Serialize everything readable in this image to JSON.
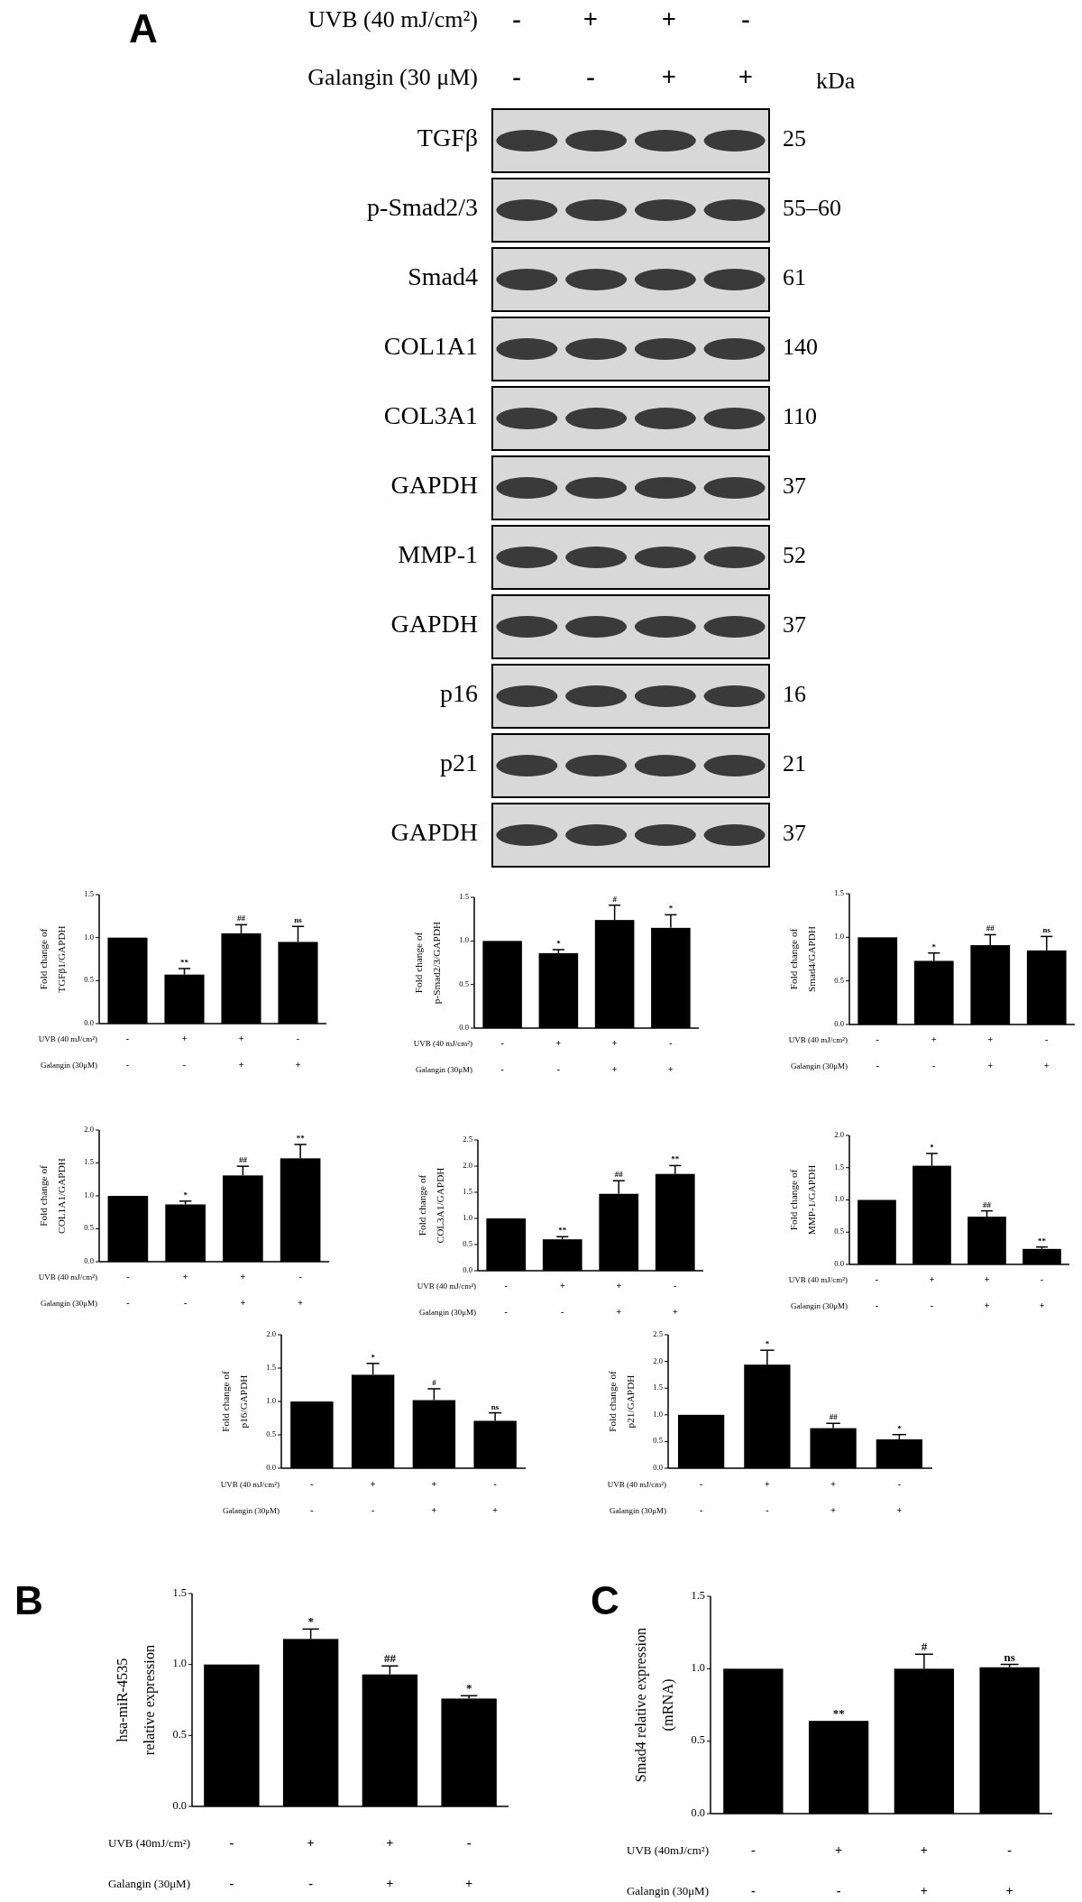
{
  "chart_data": [
    {
      "type": "other",
      "title": "A",
      "annotations": [
        "UVB (40 mJ/cm²)",
        "-",
        "+",
        "+",
        "-",
        "Galangin (30 μM)",
        "-",
        "-",
        "+",
        "+",
        "kDa",
        "TGFβ",
        "25",
        "p-Smad2/3",
        "55–60",
        "Smad4",
        "61",
        "COL1A1",
        "140",
        "COL3A1",
        "110",
        "GAPDH",
        "37",
        "MMP-1",
        "52",
        "GAPDH",
        "37",
        "p16",
        "16",
        "p21",
        "21",
        "GAPDH",
        "37"
      ]
    },
    {
      "type": "bar",
      "ylabel": "Fold change of\nTGFβ1/GAPDH",
      "categories": [
        null,
        null,
        null,
        null
      ],
      "color": "#000000",
      "values": [
        1,
        0.57,
        1.05,
        0.95
      ],
      "errors": [
        null,
        0.07,
        0.1,
        0.18
      ],
      "value_labels": [
        null,
        "**",
        "##",
        "ns"
      ],
      "ylim": [
        0,
        1.5
      ],
      "yticks": [
        {
          "value": 0,
          "label": "0.0"
        },
        {
          "value": 0.5,
          "label": "0.5"
        },
        {
          "value": 1,
          "label": "1.0"
        },
        {
          "value": 1.5,
          "label": "1.5"
        }
      ],
      "annotations": [
        "UVB (40 mJ/cm²)",
        "-",
        "+",
        "+",
        "-",
        "Galangin (30μM)",
        "-",
        "-",
        "+",
        "+"
      ]
    },
    {
      "type": "bar",
      "ylabel": "Fold change of\np-Smad2/3/GAPDH",
      "categories": [
        null,
        null,
        null,
        null
      ],
      "color": "#000000",
      "values": [
        1,
        0.86,
        1.24,
        1.15
      ],
      "errors": [
        null,
        0.04,
        0.17,
        0.15
      ],
      "value_labels": [
        null,
        "*",
        "#",
        "*"
      ],
      "ylim": [
        0,
        1.5
      ],
      "yticks": [
        {
          "value": 0,
          "label": "0.0"
        },
        {
          "value": 0.5,
          "label": "0.5"
        },
        {
          "value": 1,
          "label": "1.0"
        },
        {
          "value": 1.5,
          "label": "1.5"
        }
      ],
      "annotations": [
        "UVB (40 mJ/cm²)",
        "-",
        "+",
        "+",
        "-",
        "Galangin (30μM)",
        "-",
        "-",
        "+",
        "+"
      ]
    },
    {
      "type": "bar",
      "ylabel": "Fold change of\nSmad4/GAPDH",
      "categories": [
        null,
        null,
        null,
        null
      ],
      "color": "#000000",
      "values": [
        1,
        0.73,
        0.91,
        0.85
      ],
      "errors": [
        null,
        0.09,
        0.12,
        0.16
      ],
      "value_labels": [
        null,
        "*",
        "##",
        "ns"
      ],
      "ylim": [
        0,
        1.5
      ],
      "yticks": [
        {
          "value": 0,
          "label": "0.0"
        },
        {
          "value": 0.5,
          "label": "0.5"
        },
        {
          "value": 1,
          "label": "1.0"
        },
        {
          "value": 1.5,
          "label": "1.5"
        }
      ],
      "annotations": [
        "UVB (40 mJ/cm²)",
        "-",
        "+",
        "+",
        "-",
        "Galangin (30μM)",
        "-",
        "-",
        "+",
        "+"
      ]
    },
    {
      "type": "bar",
      "ylabel": "Fold change of\nCOL1A1/GAPDH",
      "categories": [
        null,
        null,
        null,
        null
      ],
      "color": "#000000",
      "values": [
        1,
        0.87,
        1.31,
        1.57
      ],
      "errors": [
        null,
        0.05,
        0.14,
        0.21
      ],
      "value_labels": [
        null,
        "*",
        "##",
        "**"
      ],
      "ylim": [
        0,
        2
      ],
      "yticks": [
        {
          "value": 0,
          "label": "0.0"
        },
        {
          "value": 0.5,
          "label": "0.5"
        },
        {
          "value": 1,
          "label": "1.0"
        },
        {
          "value": 1.5,
          "label": "1.5"
        },
        {
          "value": 2,
          "label": "2.0"
        }
      ],
      "annotations": [
        "UVB (40 mJ/cm²)",
        "-",
        "+",
        "+",
        "-",
        "Galangin (30μM)",
        "-",
        "-",
        "+",
        "+"
      ]
    },
    {
      "type": "bar",
      "ylabel": "Fold change of\nCOL3A1/GAPDH",
      "categories": [
        null,
        null,
        null,
        null
      ],
      "color": "#000000",
      "values": [
        1,
        0.6,
        1.47,
        1.85
      ],
      "errors": [
        null,
        0.05,
        0.25,
        0.16
      ],
      "value_labels": [
        null,
        "**",
        "##",
        "**"
      ],
      "ylim": [
        0,
        2.5
      ],
      "yticks": [
        {
          "value": 0,
          "label": "0.0"
        },
        {
          "value": 0.5,
          "label": "0.5"
        },
        {
          "value": 1,
          "label": "1.0"
        },
        {
          "value": 1.5,
          "label": "1.5"
        },
        {
          "value": 2,
          "label": "2.0"
        },
        {
          "value": 2.5,
          "label": "2.5"
        }
      ],
      "annotations": [
        "UVB (40 mJ/cm²)",
        "-",
        "+",
        "+",
        "-",
        "Galangin (30μM)",
        "-",
        "-",
        "+",
        "+"
      ]
    },
    {
      "type": "bar",
      "ylabel": "Fold change of\nMMP-1/GAPDH",
      "categories": [
        null,
        null,
        null,
        null
      ],
      "color": "#000000",
      "values": [
        1,
        1.53,
        0.74,
        0.24
      ],
      "errors": [
        null,
        0.19,
        0.09,
        0.03
      ],
      "value_labels": [
        null,
        "*",
        "##",
        "**"
      ],
      "ylim": [
        0,
        2
      ],
      "yticks": [
        {
          "value": 0,
          "label": "0.0"
        },
        {
          "value": 0.5,
          "label": "0.5"
        },
        {
          "value": 1,
          "label": "1.0"
        },
        {
          "value": 1.5,
          "label": "1.5"
        },
        {
          "value": 2,
          "label": "2.0"
        }
      ],
      "annotations": [
        "UVB (40 mJ/cm²)",
        "-",
        "+",
        "+",
        "-",
        "Galangin (30μM)",
        "-",
        "-",
        "+",
        "+"
      ]
    },
    {
      "type": "bar",
      "ylabel": "Fold change of\np16/GAPDH",
      "categories": [
        null,
        null,
        null,
        null
      ],
      "color": "#000000",
      "values": [
        1,
        1.4,
        1.02,
        0.71
      ],
      "errors": [
        null,
        0.17,
        0.17,
        0.12
      ],
      "value_labels": [
        null,
        "*",
        "#",
        "ns"
      ],
      "ylim": [
        0,
        2
      ],
      "yticks": [
        {
          "value": 0,
          "label": "0.0"
        },
        {
          "value": 0.5,
          "label": "0.5"
        },
        {
          "value": 1,
          "label": "1.0"
        },
        {
          "value": 1.5,
          "label": "1.5"
        },
        {
          "value": 2,
          "label": "2.0"
        }
      ],
      "annotations": [
        "UVB (40 mJ/cm²)",
        "-",
        "+",
        "+",
        "-",
        "Galangin (30μM)",
        "-",
        "-",
        "+",
        "+"
      ]
    },
    {
      "type": "bar",
      "ylabel": "Fold change of\np21/GAPDH",
      "categories": [
        null,
        null,
        null,
        null
      ],
      "color": "#000000",
      "values": [
        1,
        1.94,
        0.75,
        0.54
      ],
      "errors": [
        null,
        0.27,
        0.09,
        0.09
      ],
      "value_labels": [
        null,
        "*",
        "##",
        "*"
      ],
      "ylim": [
        0,
        2.5
      ],
      "yticks": [
        {
          "value": 0,
          "label": "0.0"
        },
        {
          "value": 0.5,
          "label": "0.5"
        },
        {
          "value": 1,
          "label": "1.0"
        },
        {
          "value": 1.5,
          "label": "1.5"
        },
        {
          "value": 2,
          "label": "2.0"
        },
        {
          "value": 2.5,
          "label": "2.5"
        }
      ],
      "annotations": [
        "UVB (40 mJ/cm²)",
        "-",
        "+",
        "+",
        "-",
        "Galangin (30μM)",
        "-",
        "-",
        "+",
        "+"
      ]
    },
    {
      "type": "bar",
      "title": "B",
      "ylabel": "hsa-miR-4535\nrelative expression",
      "categories": [
        null,
        null,
        null,
        null
      ],
      "color": "#000000",
      "values": [
        1,
        1.18,
        0.93,
        0.76
      ],
      "errors": [
        null,
        0.07,
        0.06,
        0.02
      ],
      "value_labels": [
        null,
        "*",
        "##",
        "*"
      ],
      "ylim": [
        0,
        1.5
      ],
      "yticks": [
        {
          "value": 0,
          "label": "0.0"
        },
        {
          "value": 0.5,
          "label": "0.5"
        },
        {
          "value": 1,
          "label": "1.0"
        },
        {
          "value": 1.5,
          "label": "1.5"
        }
      ],
      "annotations": [
        "UVB (40mJ/cm²)",
        "-",
        "+",
        "+",
        "-",
        "Galangin  (30μM)",
        "-",
        "-",
        "+",
        "+"
      ]
    },
    {
      "type": "bar",
      "title": "C",
      "ylabel": "Smad4 relative expression\n(mRNA)",
      "categories": [
        null,
        null,
        null,
        null
      ],
      "color": "#000000",
      "values": [
        1,
        0.64,
        1.0,
        1.01
      ],
      "errors": [
        null,
        null,
        0.1,
        0.02
      ],
      "value_labels": [
        null,
        "**",
        "#",
        "ns"
      ],
      "ylim": [
        0,
        1.5
      ],
      "yticks": [
        {
          "value": 0,
          "label": "0.0"
        },
        {
          "value": 0.5,
          "label": "0.5"
        },
        {
          "value": 1,
          "label": "1.0"
        },
        {
          "value": 1.5,
          "label": "1.5"
        }
      ],
      "annotations": [
        "UVB (40mJ/cm²)",
        "-",
        "+",
        "+",
        "-",
        "Galangin  (30μM)",
        "-",
        "-",
        "+",
        "+"
      ]
    }
  ]
}
